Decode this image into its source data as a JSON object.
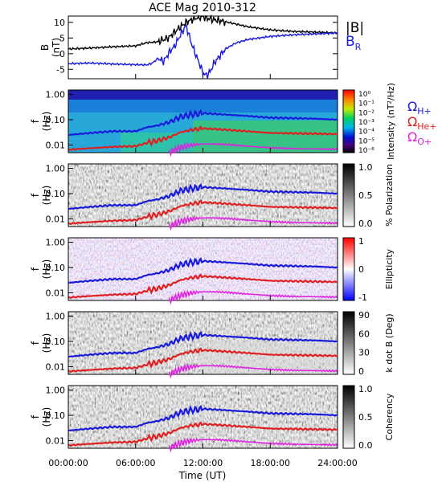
{
  "title": "ACE Mag 2010-312",
  "chart_data": {
    "type": "line",
    "title": "ACE Mag 2010-312",
    "xlabel": "Time (UT)",
    "x_ticks": [
      "00:00:00",
      "06:00:00",
      "12:00:00",
      "18:00:00",
      "24:00:00"
    ],
    "xlim_hours": [
      0,
      24
    ],
    "panels": [
      {
        "id": "b-field",
        "ylabel": "B",
        "yunit": "(nT)",
        "ylim": [
          -8,
          12
        ],
        "y_ticks": [
          "10",
          "5",
          "0",
          "-5"
        ],
        "legend": [
          {
            "name": "|B|",
            "color": "#000000"
          },
          {
            "name": "B",
            "sub": "R",
            "color": "#1a1adc"
          }
        ],
        "series": [
          {
            "name": "|B|",
            "color": "#000000",
            "x": [
              0,
              2,
              4,
              6,
              7,
              8,
              8.5,
              9,
              9.5,
              10,
              10.5,
              11,
              11.5,
              12,
              12.5,
              13,
              14,
              15,
              16,
              18,
              20,
              22,
              24
            ],
            "y": [
              1.5,
              1.8,
              2.2,
              2.5,
              3.5,
              3.8,
              4.5,
              5.2,
              7,
              8.5,
              10,
              10.8,
              11.5,
              11.8,
              11.2,
              10.8,
              10.2,
              9.4,
              8.6,
              7.6,
              7.1,
              6.9,
              6.6
            ]
          },
          {
            "name": "B_R",
            "color": "#1a1adc",
            "x": [
              0,
              2,
              4,
              6,
              7,
              7.5,
              8,
              8.5,
              9,
              9.5,
              10,
              10.5,
              11,
              11.5,
              12,
              12.3,
              12.6,
              13,
              14,
              15,
              16,
              18,
              20,
              22,
              24
            ],
            "y": [
              -3.2,
              -3.0,
              -3.3,
              -3.5,
              -3.6,
              -3.0,
              -1.5,
              -2.5,
              0.5,
              2.5,
              6,
              9,
              3,
              -1.5,
              -6,
              -7,
              -6,
              -3,
              1.5,
              3.5,
              4.5,
              5.5,
              6,
              6.3,
              6.6
            ]
          }
        ]
      },
      {
        "id": "intensity",
        "type": "heatmap",
        "ylabel": "f",
        "yunit": "(Hz)",
        "y_ticks": [
          "1.00",
          "0.10",
          "0.01"
        ],
        "colorbar_label": "Intensity (nT²/Hz)",
        "colorbar_ticks": [
          "10⁰",
          "10⁻¹",
          "10⁻²",
          "10⁻³",
          "10⁻⁴",
          "10⁻⁵",
          "10⁻⁶"
        ]
      },
      {
        "id": "polarization",
        "type": "heatmap",
        "ylabel": "f",
        "yunit": "(Hz)",
        "y_ticks": [
          "1.00",
          "0.10",
          "0.01"
        ],
        "colorbar_label": "% Polarization",
        "colorbar_ticks": [
          "1.0",
          "0.5",
          "0.0"
        ]
      },
      {
        "id": "ellipticity",
        "type": "heatmap",
        "ylabel": "f",
        "yunit": "(Hz)",
        "y_ticks": [
          "1.00",
          "0.10",
          "0.01"
        ],
        "colorbar_label": "Ellipticity",
        "colorbar_ticks": [
          "1",
          "0",
          "-1"
        ]
      },
      {
        "id": "kdotb",
        "type": "heatmap",
        "ylabel": "f",
        "yunit": "(Hz)",
        "y_ticks": [
          "1.00",
          "0.10",
          "0.01"
        ],
        "colorbar_label": "k dot B (Deg)",
        "colorbar_ticks": [
          "90",
          "60",
          "30",
          "0"
        ]
      },
      {
        "id": "coherency",
        "type": "heatmap",
        "ylabel": "f",
        "yunit": "(Hz)",
        "y_ticks": [
          "1.00",
          "0.10",
          "0.01"
        ],
        "colorbar_label": "Coherency",
        "colorbar_ticks": [
          "1.0",
          "0.5",
          "0.0"
        ]
      }
    ],
    "gyrofrequency_lines": [
      {
        "name": "Ω H+",
        "sym": "Ω",
        "sub": "H+",
        "color": "#1a1adc",
        "x": [
          0,
          2,
          4,
          6,
          7,
          8,
          9,
          10,
          11,
          12,
          13,
          14,
          16,
          18,
          20,
          22,
          24
        ],
        "f_hz": [
          0.025,
          0.03,
          0.035,
          0.035,
          0.05,
          0.06,
          0.08,
          0.13,
          0.16,
          0.18,
          0.17,
          0.16,
          0.14,
          0.12,
          0.115,
          0.11,
          0.1
        ]
      },
      {
        "name": "Ω He+",
        "sym": "Ω",
        "sub": "He+",
        "color": "#e02020",
        "x": [
          0,
          2,
          4,
          6,
          7,
          8,
          9,
          10,
          11,
          12,
          13,
          14,
          16,
          18,
          20,
          22,
          24
        ],
        "f_hz": [
          0.0065,
          0.0075,
          0.0085,
          0.009,
          0.012,
          0.015,
          0.02,
          0.032,
          0.04,
          0.045,
          0.043,
          0.04,
          0.035,
          0.03,
          0.029,
          0.028,
          0.027
        ]
      },
      {
        "name": "Ω O+",
        "sym": "Ω",
        "sub": "O+",
        "color": "#e020e0",
        "x": [
          9,
          10,
          11,
          12,
          13,
          14,
          16,
          18,
          20,
          22,
          24
        ],
        "f_hz": [
          0.005,
          0.008,
          0.01,
          0.011,
          0.011,
          0.0105,
          0.009,
          0.0078,
          0.0072,
          0.007,
          0.0068
        ]
      }
    ]
  }
}
